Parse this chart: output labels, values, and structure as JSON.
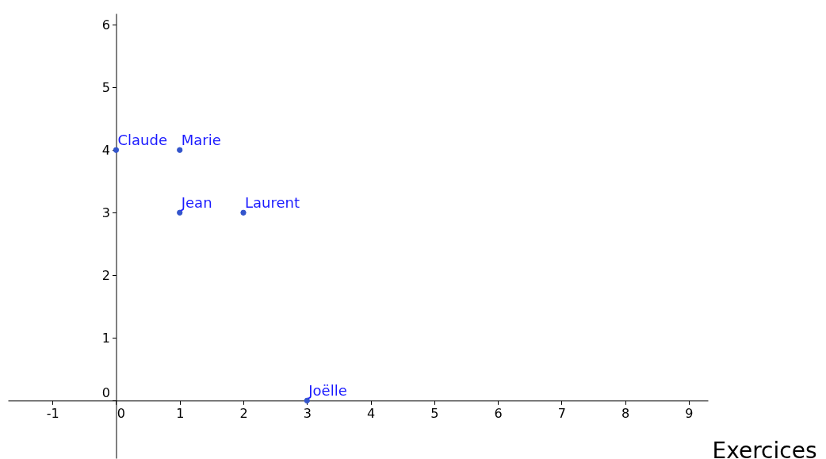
{
  "chart_data": {
    "type": "scatter",
    "xlabel": "Exercices",
    "series": [
      {
        "color": "#3355cc",
        "x": [
          0,
          1,
          1,
          2,
          3
        ],
        "values": [
          4,
          4,
          3,
          3,
          0
        ]
      }
    ],
    "xlim": [
      -1.7,
      9.3
    ],
    "ylim": [
      -0.92,
      6.18
    ],
    "xticks": [
      -1,
      0,
      1,
      2,
      3,
      4,
      5,
      6,
      7,
      8,
      9
    ],
    "yticks": [
      0,
      1,
      2,
      3,
      4,
      5,
      6
    ],
    "grid": false,
    "marker": "circle",
    "annotations": [
      {
        "text": "Claude",
        "x": 0,
        "y": 4
      },
      {
        "text": "Marie",
        "x": 1,
        "y": 4
      },
      {
        "text": "Jean",
        "x": 1,
        "y": 3
      },
      {
        "text": "Laurent",
        "x": 2,
        "y": 3
      },
      {
        "text": "Joëlle",
        "x": 3,
        "y": 0
      }
    ]
  }
}
